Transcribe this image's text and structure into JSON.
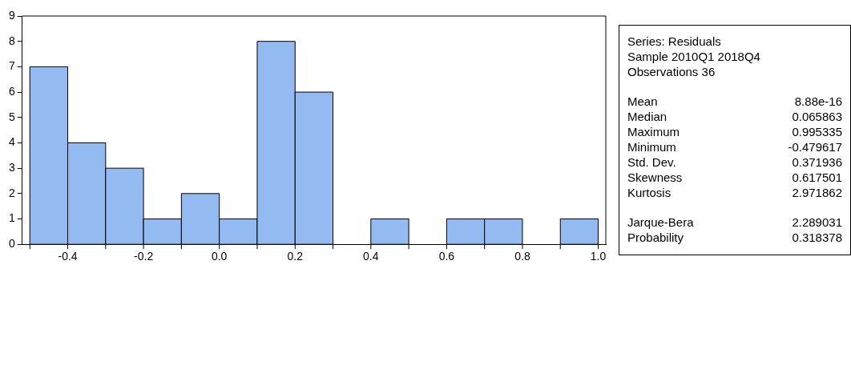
{
  "chart_data": [
    {
      "type": "histogram",
      "bins": [
        -0.5,
        -0.4,
        -0.3,
        -0.2,
        -0.1,
        0.0,
        0.1,
        0.2,
        0.3,
        0.4,
        0.5,
        0.6,
        0.7,
        0.8,
        0.9,
        1.0
      ],
      "values": [
        7,
        4,
        3,
        1,
        2,
        1,
        8,
        6,
        0,
        1,
        0,
        1,
        1,
        0,
        1
      ],
      "color": "#94baf2",
      "xlim": [
        -0.52,
        1.02
      ],
      "xticks": [
        {
          "value": -0.5,
          "label": null
        },
        -0.4,
        {
          "value": -0.3,
          "label": null
        },
        -0.2,
        {
          "value": -0.1,
          "label": null
        },
        {
          "value": 0,
          "label": "0.0"
        },
        {
          "value": 0.1,
          "label": null
        },
        0.2,
        {
          "value": 0.3,
          "label": null
        },
        0.4,
        {
          "value": 0.5,
          "label": null
        },
        0.6,
        {
          "value": 0.7,
          "label": null
        },
        0.8,
        {
          "value": 0.9,
          "label": null
        },
        {
          "value": 1,
          "label": "1.0"
        }
      ],
      "ylim": [
        0,
        9
      ],
      "yticks": [
        0,
        1,
        2,
        3,
        4,
        5,
        6,
        7,
        8,
        9
      ],
      "grid": false,
      "legend": false
    },
    {
      "type": "other",
      "annotations": [
        "Series: Residuals",
        "Sample 2010Q1 2018Q4",
        "Observations 36",
        "Mean",
        "8.88e-16",
        "Median",
        "0.065863",
        "Maximum",
        "0.995335",
        "Minimum",
        "-0.479617",
        "Std. Dev.",
        "0.371936",
        "Skewness",
        "0.617501",
        "Kurtosis",
        "2.971862",
        "Jarque-Bera",
        "2.289031",
        "Probability",
        "0.318378"
      ]
    }
  ]
}
